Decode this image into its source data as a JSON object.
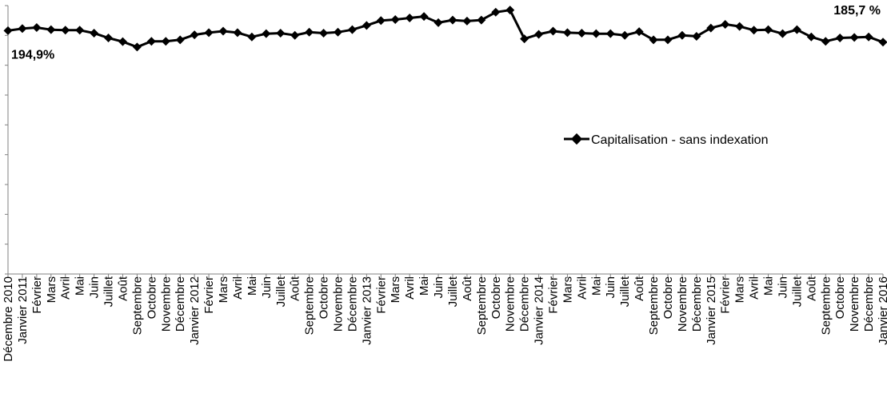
{
  "chart_data": {
    "type": "line",
    "title": "",
    "xlabel": "",
    "ylabel": "",
    "ylim": [
      0,
      215
    ],
    "grid": false,
    "legend_position": "right",
    "x": [
      "Décembre 2010",
      "Janvier 2011",
      "Février",
      "Mars",
      "Avril",
      "Mai",
      "Juin",
      "Juillet",
      "Août",
      "Septembre",
      "Octobre",
      "Novembre",
      "Décembre",
      "Janvier 2012",
      "Février",
      "Mars",
      "Avril",
      "Mai",
      "Juin",
      "Juillet",
      "Août",
      "Septembre",
      "Octobre",
      "Novembre",
      "Décembre",
      "Janvier 2013",
      "Février",
      "Mars",
      "Avril",
      "Mai",
      "Juin",
      "Juillet",
      "Août",
      "Septembre",
      "Octobre",
      "Novembre",
      "Décembre",
      "Janvier 2014",
      "Février",
      "Mars",
      "Avril",
      "Mai",
      "Juin",
      "Juillet",
      "Août",
      "Septembre",
      "Octobre",
      "Novembre",
      "Décembre",
      "Janvier 2015",
      "Février",
      "Mars",
      "Avril",
      "Mai",
      "Juin",
      "Juillet",
      "Août",
      "Septembre",
      "Octobre",
      "Novembre",
      "Décembre",
      "Janvier 2016"
    ],
    "series": [
      {
        "name": "Capitalisation - sans indexation",
        "color": "#000000",
        "marker": "diamond",
        "values": [
          194.9,
          196.6,
          197.4,
          195.7,
          195.3,
          195.3,
          192.9,
          189.1,
          186.1,
          181.8,
          186.4,
          186.4,
          187.6,
          191.6,
          193.3,
          194.5,
          193.3,
          189.9,
          192.5,
          192.9,
          191.2,
          193.7,
          192.9,
          193.7,
          195.7,
          199.1,
          203.0,
          203.8,
          205.1,
          206.3,
          201.3,
          203.4,
          202.6,
          203.4,
          209.7,
          211.4,
          188.4,
          192.0,
          194.5,
          193.3,
          192.9,
          192.5,
          192.5,
          191.2,
          194.1,
          187.6,
          187.6,
          191.2,
          190.4,
          197.0,
          200.0,
          198.3,
          195.3,
          195.7,
          192.5,
          195.7,
          189.9,
          186.4,
          189.1,
          189.5,
          189.9,
          185.7
        ]
      }
    ],
    "annotations": [
      {
        "text": "194,9%",
        "category_index": 0
      },
      {
        "text": "185,7 %",
        "category_index": 61
      }
    ]
  }
}
